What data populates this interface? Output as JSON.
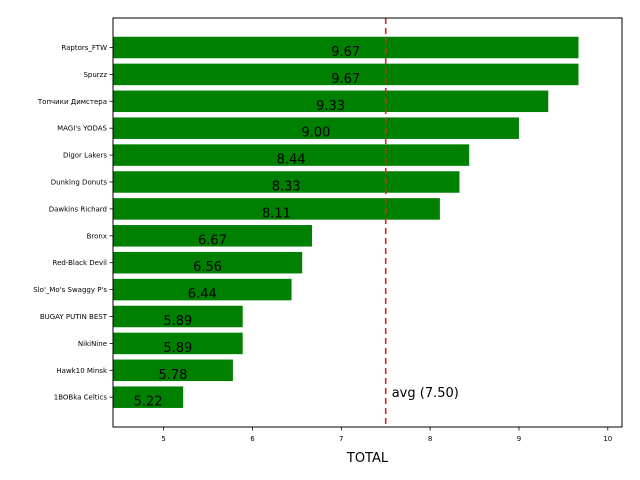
{
  "chart_data": {
    "type": "bar",
    "orientation": "horizontal",
    "title": "",
    "xlabel": "TOTAL",
    "ylabel": "",
    "xlim": [
      4.43,
      10.16
    ],
    "x_ticks": [
      5,
      6,
      7,
      8,
      9,
      10
    ],
    "categories": [
      "Raptors_FTW",
      "Spurzz",
      "Топчики Димстера",
      "MAGI's YODAS",
      "Digor Lakers",
      "Dunking Donuts",
      "Dawkins Richard",
      "Bronx",
      "Red-Black Devil",
      "Slo'_Mo's Swaggy P's",
      "BUGAY PUTIN BEST",
      "NikiNine",
      "Hawk10 Minsk",
      "1BOBka Celtics"
    ],
    "values": [
      9.67,
      9.67,
      9.33,
      9.0,
      8.44,
      8.33,
      8.11,
      6.67,
      6.56,
      6.44,
      5.89,
      5.89,
      5.78,
      5.22
    ],
    "value_labels": [
      "9.67",
      "9.67",
      "9.33",
      "9.00",
      "8.44",
      "8.33",
      "8.11",
      "6.67",
      "6.56",
      "6.44",
      "5.89",
      "5.89",
      "5.78",
      "5.22"
    ],
    "bar_color": "#008000",
    "reference_line": {
      "value": 7.5,
      "label": "avg (7.50)",
      "color": "#d62728",
      "style": "dashed"
    },
    "grid": false,
    "legend": "none"
  }
}
